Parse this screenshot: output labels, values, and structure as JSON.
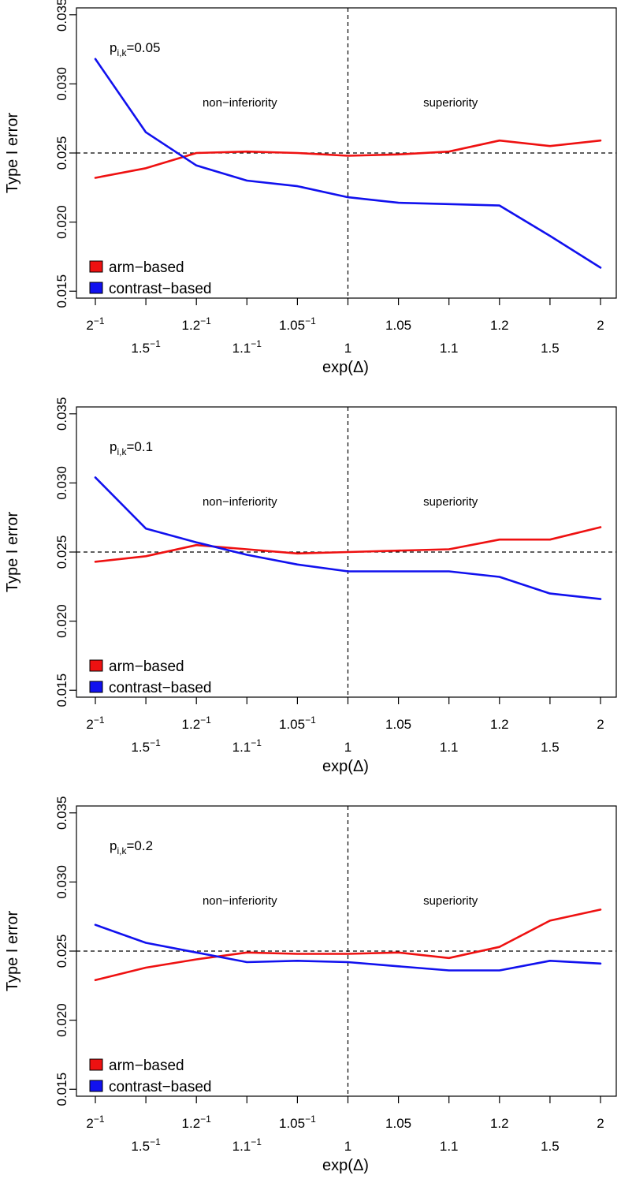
{
  "chart_data": [
    {
      "type": "line",
      "panel_label": {
        "main": "p",
        "subscript": "i,k",
        "value": "=0.05"
      },
      "ylabel": "Type I error",
      "xlabel": "exp(Δ)",
      "ylim": [
        0.0145,
        0.0355
      ],
      "yticks": [
        "0.015",
        "0.020",
        "0.025",
        "0.030",
        "0.035"
      ],
      "categories": [
        "2⁻¹",
        "1.5⁻¹",
        "1.2⁻¹",
        "1.1⁻¹",
        "1.05⁻¹",
        "1",
        "1.05",
        "1.1",
        "1.2",
        "1.5",
        "2"
      ],
      "reference_line": 0.025,
      "divider_at": "1",
      "regions": [
        "non−inferiority",
        "superiority"
      ],
      "legend": [
        "arm−based",
        "contrast−based"
      ],
      "series": [
        {
          "name": "arm−based",
          "color": "#ee1111",
          "values": [
            0.0232,
            0.0239,
            0.025,
            0.0251,
            0.025,
            0.0248,
            0.0249,
            0.0251,
            0.0259,
            0.0255,
            0.0259
          ]
        },
        {
          "name": "contrast−based",
          "color": "#1111ee",
          "values": [
            0.0318,
            0.0265,
            0.0241,
            0.023,
            0.0226,
            0.0218,
            0.0214,
            0.0213,
            0.0212,
            0.019,
            0.0167
          ]
        }
      ]
    },
    {
      "type": "line",
      "panel_label": {
        "main": "p",
        "subscript": "i,k",
        "value": "=0.1"
      },
      "ylabel": "Type I error",
      "xlabel": "exp(Δ)",
      "ylim": [
        0.0145,
        0.0355
      ],
      "yticks": [
        "0.015",
        "0.020",
        "0.025",
        "0.030",
        "0.035"
      ],
      "categories": [
        "2⁻¹",
        "1.5⁻¹",
        "1.2⁻¹",
        "1.1⁻¹",
        "1.05⁻¹",
        "1",
        "1.05",
        "1.1",
        "1.2",
        "1.5",
        "2"
      ],
      "reference_line": 0.025,
      "divider_at": "1",
      "regions": [
        "non−inferiority",
        "superiority"
      ],
      "legend": [
        "arm−based",
        "contrast−based"
      ],
      "series": [
        {
          "name": "arm−based",
          "color": "#ee1111",
          "values": [
            0.0243,
            0.0247,
            0.0255,
            0.0252,
            0.0249,
            0.025,
            0.0251,
            0.0252,
            0.0259,
            0.0259,
            0.0268
          ]
        },
        {
          "name": "contrast−based",
          "color": "#1111ee",
          "values": [
            0.0304,
            0.0267,
            0.0257,
            0.0248,
            0.0241,
            0.0236,
            0.0236,
            0.0236,
            0.0232,
            0.022,
            0.0216
          ]
        }
      ]
    },
    {
      "type": "line",
      "panel_label": {
        "main": "p",
        "subscript": "i,k",
        "value": "=0.2"
      },
      "ylabel": "Type I error",
      "xlabel": "exp(Δ)",
      "ylim": [
        0.0145,
        0.0355
      ],
      "yticks": [
        "0.015",
        "0.020",
        "0.025",
        "0.030",
        "0.035"
      ],
      "categories": [
        "2⁻¹",
        "1.5⁻¹",
        "1.2⁻¹",
        "1.1⁻¹",
        "1.05⁻¹",
        "1",
        "1.05",
        "1.1",
        "1.2",
        "1.5",
        "2"
      ],
      "reference_line": 0.025,
      "divider_at": "1",
      "regions": [
        "non−inferiority",
        "superiority"
      ],
      "legend": [
        "arm−based",
        "contrast−based"
      ],
      "series": [
        {
          "name": "arm−based",
          "color": "#ee1111",
          "values": [
            0.0229,
            0.0238,
            0.0244,
            0.0249,
            0.0248,
            0.0248,
            0.0249,
            0.0245,
            0.0253,
            0.0272,
            0.028
          ]
        },
        {
          "name": "contrast−based",
          "color": "#1111ee",
          "values": [
            0.0269,
            0.0256,
            0.0249,
            0.0242,
            0.0243,
            0.0242,
            0.0239,
            0.0236,
            0.0236,
            0.0243,
            0.0241
          ]
        }
      ]
    }
  ]
}
